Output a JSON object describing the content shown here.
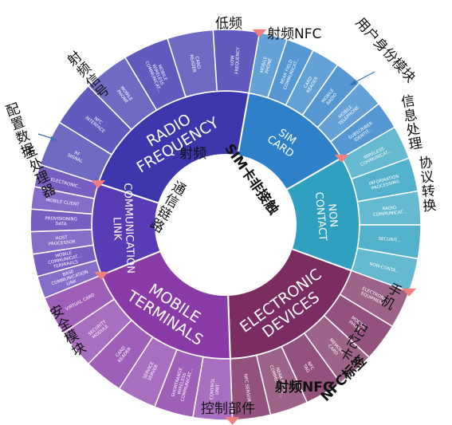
{
  "colors": {
    "radio": "#3a35a8",
    "sim": "#2e7ec7",
    "noncontact": "#2f9cbc",
    "electronic": "#7a2a5e",
    "mobile": "#8e3fa8",
    "comm": "#5a3ab4",
    "tag": "#f08080"
  },
  "diagram": {
    "inner": [
      {
        "name": "RADIO FREQUENCY",
        "lines": [
          "RADIO",
          "FREQUENCY"
        ],
        "color": "#3d37ad"
      },
      {
        "name": "SIM CARD",
        "lines": [
          "SIM",
          "CARD"
        ],
        "color": "#2e80c8"
      },
      {
        "name": "NON CONTACT",
        "lines": [
          "NON",
          "CONTACT"
        ],
        "color": "#2fa0bf"
      },
      {
        "name": "ELECTRONIC DEVICES",
        "lines": [
          "ELECTRONIC",
          "DEVICES"
        ],
        "color": "#7b2c60"
      },
      {
        "name": "MOBILE TERMINALS",
        "lines": [
          "MOBILE",
          "TERMINALS"
        ],
        "color": "#8a3ba8"
      },
      {
        "name": "COMMUNICATION LINK",
        "lines": [
          "COMMUNICATION",
          "LINK"
        ],
        "color": "#5b3bb5"
      }
    ],
    "outer": [
      {
        "parent": 0,
        "lines": [
          "RF",
          "SIGNAL"
        ]
      },
      {
        "parent": 0,
        "lines": [
          "NFC",
          "INTERFACE"
        ]
      },
      {
        "parent": 0,
        "lines": [
          "MOBILE",
          "PHONE"
        ]
      },
      {
        "parent": 0,
        "lines": [
          "MOBILE",
          "WIRELESS",
          "COMMUNICAT..."
        ]
      },
      {
        "parent": 0,
        "lines": [
          "CARD",
          "READER"
        ]
      },
      {
        "parent": 0,
        "lines": [
          "LOW",
          "FREQUENCY"
        ]
      },
      {
        "parent": 1,
        "lines": [
          "MOBILE",
          "PHONE"
        ]
      },
      {
        "parent": 1,
        "lines": [
          "NEAR FIELD",
          "COMMUNICAT..."
        ]
      },
      {
        "parent": 1,
        "lines": [
          "CARD",
          "READER"
        ]
      },
      {
        "parent": 1,
        "lines": [
          "MOBILE",
          "RADIO"
        ]
      },
      {
        "parent": 1,
        "lines": [
          "MOBILE",
          "TELEPHONE"
        ]
      },
      {
        "parent": 1,
        "lines": [
          "SUBSCRIBER",
          "IDENTIT..."
        ]
      },
      {
        "parent": 2,
        "lines": [
          "WIRELESS",
          "COMMUNICAT..."
        ]
      },
      {
        "parent": 2,
        "lines": [
          "INFORMATION",
          "PROCESSING"
        ]
      },
      {
        "parent": 2,
        "lines": [
          "RADIO",
          "COMMUNICAT..."
        ]
      },
      {
        "parent": 2,
        "lines": [
          "SECURIT..."
        ]
      },
      {
        "parent": 2,
        "lines": [
          "NON-CONTA..."
        ]
      },
      {
        "parent": 3,
        "lines": [
          "ELECTRONIC",
          "EQUIPMENT"
        ]
      },
      {
        "parent": 3,
        "lines": [
          "MOBILE",
          "PHONE"
        ]
      },
      {
        "parent": 3,
        "lines": [
          "MEMORY",
          "CARD"
        ]
      },
      {
        "parent": 3,
        "lines": [
          "NFC",
          "TAG"
        ]
      },
      {
        "parent": 3,
        "lines": [
          "NEAR FIELD",
          "COMMUNICAT..."
        ]
      },
      {
        "parent": 3,
        "lines": [
          "NFC SENSOR"
        ]
      },
      {
        "parent": 4,
        "lines": [
          "CONTROL",
          "UNIT"
        ]
      },
      {
        "parent": 4,
        "lines": [
          "SHORTRANGE",
          "WIRELESS",
          "COMMUNICAT..."
        ]
      },
      {
        "parent": 4,
        "lines": [
          "SERVICE",
          "SERVER"
        ]
      },
      {
        "parent": 4,
        "lines": [
          "CARD",
          "READER"
        ]
      },
      {
        "parent": 4,
        "lines": [
          "SECURITY",
          "MODULE"
        ]
      },
      {
        "parent": 4,
        "lines": [
          "VIRTUAL CARD"
        ]
      },
      {
        "parent": 5,
        "lines": [
          "BASE",
          "COMMUNICATION",
          "LINK"
        ]
      },
      {
        "parent": 5,
        "lines": [
          "MOBILE",
          "COMMUNICAT...",
          "TERMINALS"
        ]
      },
      {
        "parent": 5,
        "lines": [
          "HOST",
          "PROCESSOR"
        ]
      },
      {
        "parent": 5,
        "lines": [
          "PROVISIONING",
          "DATA"
        ]
      },
      {
        "parent": 5,
        "lines": [
          "MOBILE CLIENT"
        ]
      },
      {
        "parent": 5,
        "lines": [
          "ELECTRONIC..."
        ]
      }
    ]
  },
  "annotations": {
    "low_freq": "低频",
    "rf_nfc": "射频NFC",
    "user_id": "用户身份模块",
    "rf_signal": "射频信号",
    "config_data": "配置数据",
    "host_proc": "主处理器",
    "info_proc": "信息处理",
    "protocol_conv": "协议转换",
    "rf_inner": "射频",
    "sim_noncontact": "SIM卡非接触",
    "comm_link": "通信链路",
    "mobile_phone": "手机",
    "memory_card": "记忆卡",
    "security_module": "安全模块",
    "nfc_tag": "NFC标签",
    "rf_nfc_bottom": "射频NFC",
    "control_unit": "控制部件"
  }
}
